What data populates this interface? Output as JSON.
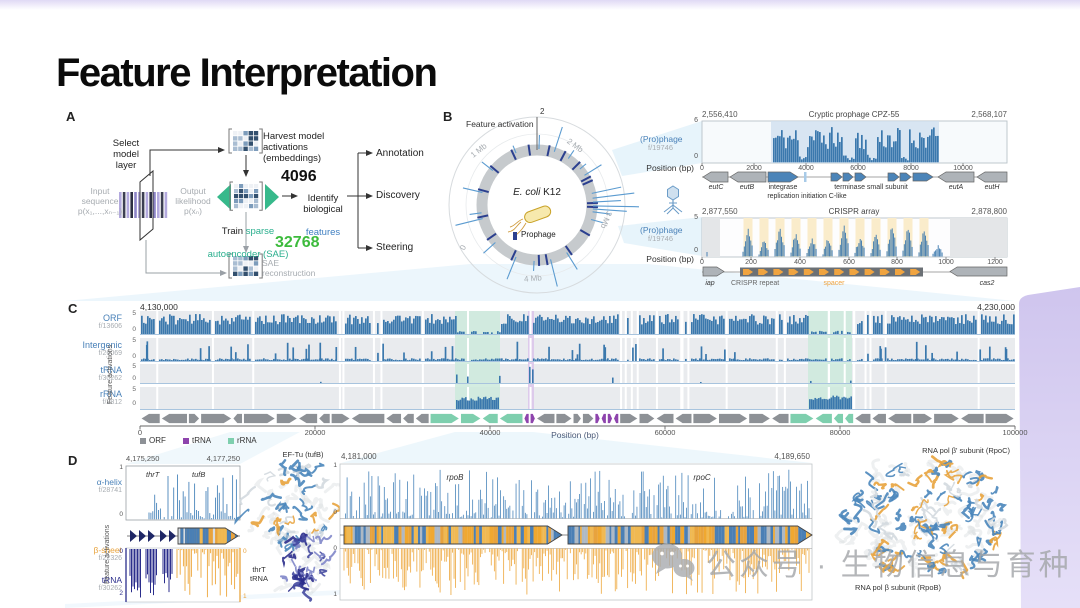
{
  "slide": {
    "title": "Feature Interpretation",
    "watermark_text": "公众号 · 生物信息与育种"
  },
  "panelA": {
    "label": "A",
    "select_layer": "Select\nmodel\nlayer",
    "input_label": "Input\nsequence\np(x₁,...,xₙ₋₁)",
    "output_label": "Output\nlikelihood\np(xₙ)",
    "harvest": "Harvest model\nactivations\n(embeddings)",
    "dim_embed": "4096",
    "train_word": "Train ",
    "train_sparse": "sparse",
    "train_line2": "autoencoder (SAE)",
    "dim_latent": "32768",
    "identify": "Identify\nbiological",
    "identify_features": "features",
    "outputs": [
      "Annotation",
      "Discovery",
      "Steering"
    ],
    "sae_reconstruction": "SAE\nreconstruction"
  },
  "panelB": {
    "label": "B",
    "axis_label": "Feature activation",
    "axis_max": "2",
    "organism_italic": "E. coli",
    "organism_rest": " K12",
    "legend_prophage": "Prophage",
    "ring_labels": [
      "1 Mb",
      "2 Mb",
      "3 Mb",
      "4 Mb",
      "0"
    ]
  },
  "sidetracks": {
    "prophage_label": "(Pro)phage",
    "feature_id": "f/19746",
    "position_label": "Position (bp)",
    "track1": {
      "start": "2,556,410",
      "title": "Cryptic prophage CPZ-55",
      "end": "2,568,107",
      "ymax": "6",
      "ymin": "0",
      "xticks": [
        "0",
        "2000",
        "4000",
        "6000",
        "8000",
        "10000"
      ],
      "gene_eutC": "eutC",
      "gene_eutB": "eutB",
      "gene_integrase": "integrase",
      "gene_terminase": "terminase small subunit",
      "gene_replication": "replication initiation C-like",
      "gene_eutA": "eutA",
      "gene_eutH": "eutH"
    },
    "track2": {
      "start": "2,877,550",
      "title": "CRISPR array",
      "end": "2,878,800",
      "ymax": "5",
      "ymin": "0",
      "xticks": [
        "0",
        "200",
        "400",
        "600",
        "800",
        "1000",
        "1200"
      ],
      "gene_iap": "iap",
      "label_repeat": "CRISPR repeat",
      "label_spacer": "spacer",
      "gene_cas2": "cas2"
    }
  },
  "panelC": {
    "label": "C",
    "start": "4,130,000",
    "end": "4,230,000",
    "ylabel": "Feature activations",
    "ymax": "5",
    "ymin": "0",
    "rows": [
      {
        "name": "ORF",
        "id": "f/13606"
      },
      {
        "name": "Intergenic",
        "id": "f/26069"
      },
      {
        "name": "tRNA",
        "id": "f/30262"
      },
      {
        "name": "rRNA",
        "id": "f/2812"
      }
    ],
    "xticks": [
      "0",
      "20000",
      "40000",
      "60000",
      "80000",
      "100000"
    ],
    "xlabel": "Position (bp)",
    "legend": [
      {
        "label": "ORF",
        "color": "#8d9196"
      },
      {
        "label": "tRNA",
        "color": "#8e44ad"
      },
      {
        "label": "rRNA",
        "color": "#7ecfae"
      }
    ]
  },
  "panelD": {
    "label": "D",
    "left": {
      "start": "4,175,250",
      "end": "4,177,250",
      "ylabel": "Feature activations",
      "rows": [
        {
          "name": "α-helix",
          "id": "f/28741"
        },
        {
          "name": "β-sheet",
          "id": "f/22326"
        },
        {
          "name": "tRNA",
          "id": "f/30262"
        }
      ],
      "gene_thrT": "thrT",
      "gene_tufB": "tufB",
      "y_top_max": "1",
      "y_top_min": "0",
      "y_bot_left_top": "0",
      "y_bot_left_bot": "2",
      "y_bot_right_top": "0",
      "y_bot_right_bot": "1"
    },
    "eftu": {
      "title": "EF-Tu (tufB)",
      "trna_label": "thrT\ntRNA"
    },
    "middle": {
      "start": "4,181,000",
      "end": "4,189,650",
      "gene_rpoB": "rpoB",
      "gene_rpoC": "rpoC",
      "y_top_max": "1",
      "y_top_min": "0",
      "y_bot_top": "0",
      "y_bot_bot": "1"
    },
    "right": {
      "top_label": "RNA pol β' subunit (RpoC)",
      "bottom_label": "RNA pol β subunit (RpoB)"
    }
  }
}
